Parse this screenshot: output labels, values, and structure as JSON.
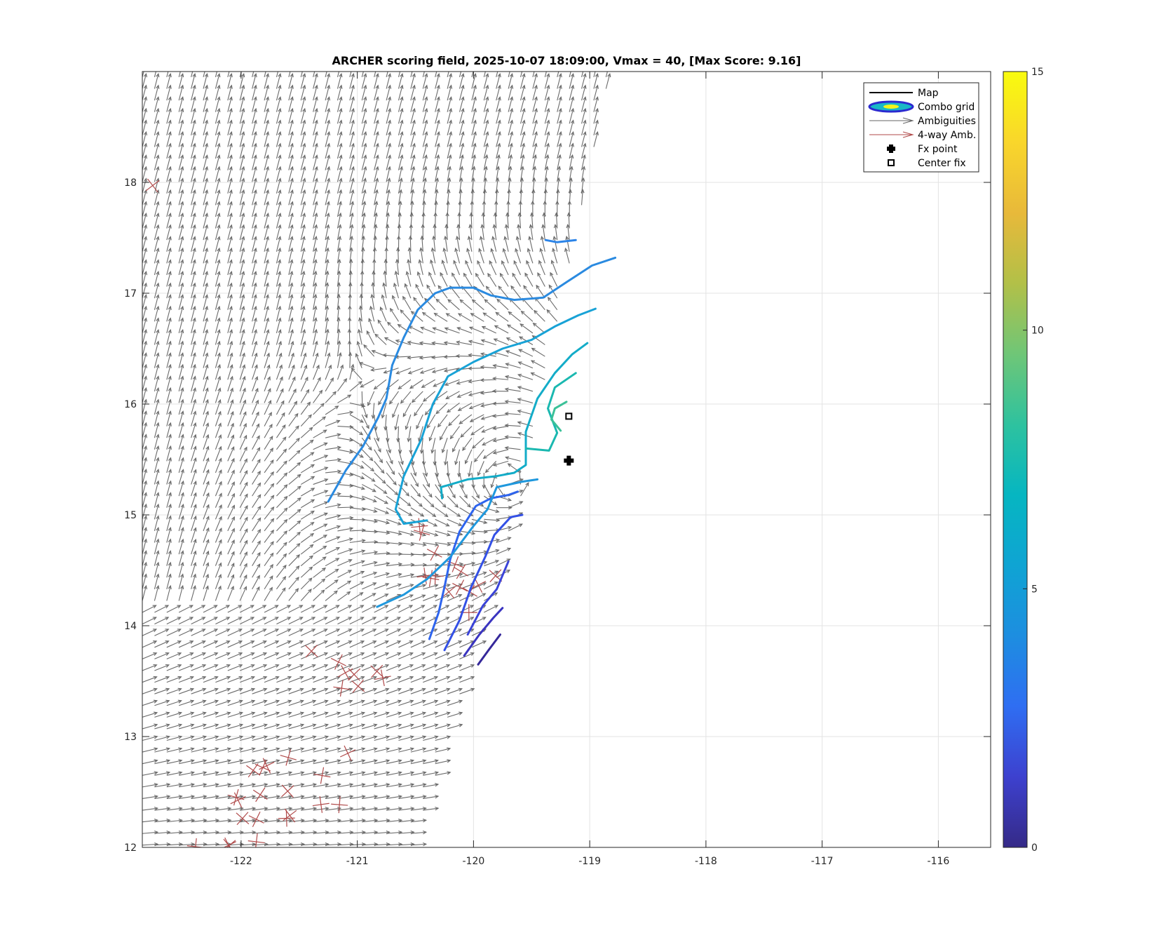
{
  "chart_data": {
    "type": "contour",
    "title": "ARCHER scoring field, 2025-10-07 18:09:00, Vmax = 40, [Max Score: 9.16]",
    "xlabel": "",
    "ylabel": "",
    "xlim": [
      -122.85,
      -115.55
    ],
    "ylim": [
      12,
      19
    ],
    "x_ticks": [
      -122,
      -121,
      -120,
      -119,
      -118,
      -117,
      -116
    ],
    "x_tick_labels": [
      "-122",
      "-121",
      "-120",
      "-119",
      "-118",
      "-117",
      "-116"
    ],
    "y_ticks": [
      12,
      13,
      14,
      15,
      16,
      17,
      18
    ],
    "y_tick_labels": [
      "12",
      "13",
      "14",
      "15",
      "16",
      "17",
      "18"
    ],
    "grid": true,
    "legend_position": "top-right",
    "legend": [
      {
        "label": "Map",
        "kind": "line",
        "color": "#000000"
      },
      {
        "label": "Combo grid",
        "kind": "ellipse",
        "color": "#2b2ad0"
      },
      {
        "label": "Ambiguities",
        "kind": "arrow",
        "color": "#666666"
      },
      {
        "label": "4-way Amb.",
        "kind": "arrow",
        "color": "#b04a4a"
      },
      {
        "label": "Fx point",
        "kind": "plus",
        "color": "#000000"
      },
      {
        "label": "Center fix",
        "kind": "square",
        "color": "#000000"
      }
    ],
    "fx_point": {
      "lon": -119.18,
      "lat": 15.49
    },
    "center_fix": {
      "lon": -119.18,
      "lat": 15.89
    },
    "colorbar": {
      "min": 0,
      "max": 15,
      "ticks": [
        0,
        5,
        10,
        15
      ],
      "tick_labels": [
        "0",
        "5",
        "10",
        "15"
      ],
      "colors": [
        "#352a87",
        "#3d41cf",
        "#2f6ef2",
        "#1d8ee0",
        "#0fa4d3",
        "#06b6c1",
        "#2ec29f",
        "#6fc677",
        "#b2c048",
        "#e8b93a",
        "#f9d62b",
        "#f9fb0e"
      ]
    },
    "contours": [
      {
        "level": 0.6,
        "color": "#35289a",
        "points": [
          [
            -119.96,
            13.65
          ],
          [
            -119.87,
            13.78
          ],
          [
            -119.77,
            13.92
          ]
        ]
      },
      {
        "level": 1.2,
        "color": "#3a34c0",
        "points": [
          [
            -120.08,
            13.73
          ],
          [
            -119.95,
            13.92
          ],
          [
            -119.83,
            14.07
          ],
          [
            -119.75,
            14.16
          ]
        ]
      },
      {
        "level": 1.8,
        "color": "#3a43d8",
        "points": [
          [
            -120.05,
            13.92
          ],
          [
            -119.92,
            14.18
          ],
          [
            -119.8,
            14.33
          ],
          [
            -119.7,
            14.58
          ]
        ]
      },
      {
        "level": 2.4,
        "color": "#3350e6",
        "points": [
          [
            -120.25,
            13.78
          ],
          [
            -120.12,
            14.05
          ],
          [
            -120.02,
            14.35
          ],
          [
            -119.9,
            14.62
          ],
          [
            -119.82,
            14.82
          ],
          [
            -119.68,
            14.98
          ],
          [
            -119.58,
            15.0
          ]
        ]
      },
      {
        "level": 3.0,
        "color": "#2e64ee",
        "points": [
          [
            -120.38,
            13.88
          ],
          [
            -120.3,
            14.12
          ],
          [
            -120.25,
            14.35
          ],
          [
            -120.2,
            14.6
          ],
          [
            -120.12,
            14.85
          ],
          [
            -119.98,
            15.08
          ],
          [
            -119.85,
            15.15
          ],
          [
            -119.7,
            15.18
          ],
          [
            -119.62,
            15.21
          ]
        ]
      },
      {
        "level": 3.6,
        "color": "#2b84e8",
        "points": [
          [
            -119.38,
            17.48
          ],
          [
            -119.28,
            17.46
          ],
          [
            -119.12,
            17.48
          ]
        ]
      },
      {
        "level": 4.2,
        "color": "#2a8ae0",
        "points": [
          [
            -121.25,
            15.12
          ],
          [
            -121.1,
            15.4
          ],
          [
            -120.95,
            15.62
          ],
          [
            -120.82,
            15.88
          ],
          [
            -120.75,
            16.05
          ],
          [
            -120.7,
            16.35
          ],
          [
            -120.6,
            16.6
          ],
          [
            -120.48,
            16.85
          ],
          [
            -120.33,
            17.0
          ],
          [
            -120.2,
            17.05
          ],
          [
            -120.0,
            17.05
          ],
          [
            -119.85,
            16.98
          ],
          [
            -119.65,
            16.94
          ],
          [
            -119.4,
            16.96
          ],
          [
            -119.2,
            17.1
          ],
          [
            -118.98,
            17.25
          ],
          [
            -118.78,
            17.32
          ]
        ]
      },
      {
        "level": 4.8,
        "color": "#1f98dd",
        "points": [
          [
            -120.83,
            14.17
          ],
          [
            -120.6,
            14.28
          ],
          [
            -120.4,
            14.42
          ],
          [
            -120.2,
            14.62
          ],
          [
            -120.0,
            14.9
          ],
          [
            -119.88,
            15.05
          ],
          [
            -119.8,
            15.25
          ],
          [
            -119.58,
            15.3
          ],
          [
            -119.45,
            15.32
          ]
        ]
      },
      {
        "level": 5.4,
        "color": "#18a2d6",
        "points": [
          [
            -120.4,
            14.95
          ],
          [
            -120.6,
            14.92
          ],
          [
            -120.67,
            15.05
          ],
          [
            -120.6,
            15.35
          ],
          [
            -120.45,
            15.68
          ],
          [
            -120.35,
            16.0
          ],
          [
            -120.22,
            16.25
          ],
          [
            -120.0,
            16.38
          ],
          [
            -119.75,
            16.5
          ],
          [
            -119.5,
            16.58
          ],
          [
            -119.3,
            16.7
          ],
          [
            -119.1,
            16.8
          ],
          [
            -118.95,
            16.86
          ]
        ]
      },
      {
        "level": 6.0,
        "color": "#13acc8",
        "points": [
          [
            -120.27,
            15.15
          ],
          [
            -120.28,
            15.25
          ],
          [
            -120.05,
            15.32
          ],
          [
            -119.8,
            15.35
          ],
          [
            -119.65,
            15.38
          ],
          [
            -119.55,
            15.45
          ],
          [
            -119.55,
            15.75
          ],
          [
            -119.45,
            16.05
          ],
          [
            -119.3,
            16.28
          ],
          [
            -119.15,
            16.45
          ],
          [
            -119.02,
            16.55
          ]
        ]
      },
      {
        "level": 7.0,
        "color": "#1ab8b0",
        "points": [
          [
            -119.55,
            15.6
          ],
          [
            -119.35,
            15.58
          ],
          [
            -119.28,
            15.74
          ],
          [
            -119.36,
            15.96
          ],
          [
            -119.3,
            16.15
          ],
          [
            -119.12,
            16.28
          ]
        ]
      },
      {
        "level": 8.2,
        "color": "#3bc198",
        "points": [
          [
            -119.25,
            15.76
          ],
          [
            -119.33,
            15.86
          ],
          [
            -119.3,
            15.96
          ],
          [
            -119.2,
            16.02
          ]
        ]
      }
    ]
  }
}
